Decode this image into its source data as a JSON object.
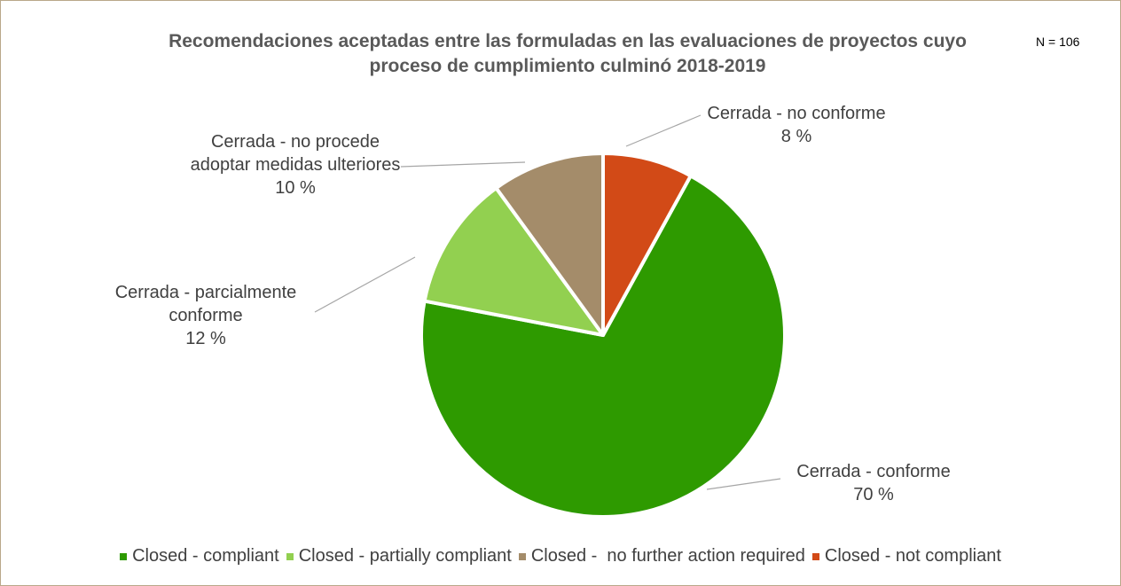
{
  "chart_data": {
    "type": "pie",
    "title": "Recomendaciones aceptadas entre las formuladas en las evaluaciones de proyectos cuyo proceso de cumplimiento culminó 2018-2019",
    "annotation": "N = 106",
    "categories": [
      "Cerrada - conforme",
      "Cerrada - parcialmente conforme",
      "Cerrada - no procede adoptar medidas ulteriores",
      "Cerrada - no conforme"
    ],
    "values": [
      70,
      12,
      10,
      8
    ],
    "value_labels": [
      "70 %",
      "12 %",
      "10 %",
      "8 %"
    ],
    "series": [
      {
        "name": "Closed - compliant",
        "color": "#2e9a00"
      },
      {
        "name": "Closed - partially compliant",
        "color": "#92d050"
      },
      {
        "name": "Closed -  no further action required",
        "color": "#a48c6a"
      },
      {
        "name": "Closed - not compliant",
        "color": "#d24a17"
      }
    ],
    "legend": "bottom"
  }
}
